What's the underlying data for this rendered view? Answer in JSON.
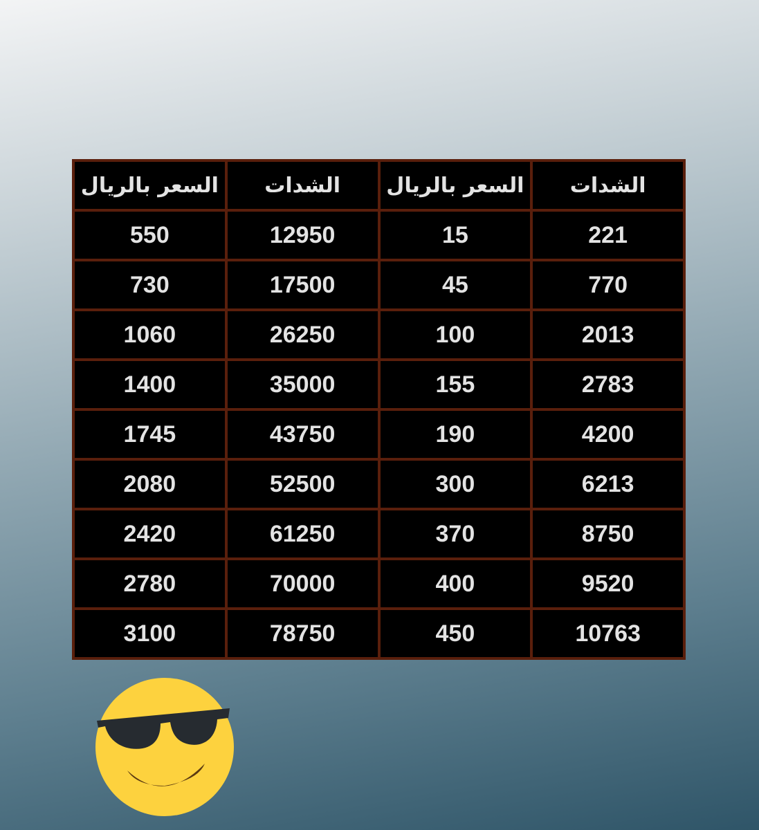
{
  "table": {
    "headers": [
      "الشدات",
      "السعر بالريال",
      "الشدات",
      "السعر بالريال"
    ],
    "rows": [
      [
        "221",
        "15",
        "12950",
        "550"
      ],
      [
        "770",
        "45",
        "17500",
        "730"
      ],
      [
        "2013",
        "100",
        "26250",
        "1060"
      ],
      [
        "2783",
        "155",
        "35000",
        "1400"
      ],
      [
        "4200",
        "190",
        "43750",
        "1745"
      ],
      [
        "6213",
        "300",
        "52500",
        "2080"
      ],
      [
        "8750",
        "370",
        "61250",
        "2420"
      ],
      [
        "9520",
        "400",
        "70000",
        "2780"
      ],
      [
        "10763",
        "450",
        "78750",
        "3100"
      ]
    ]
  },
  "colors": {
    "border": "#5a1f0c",
    "cell": "#000000",
    "text": "#e3e3e3",
    "emoji": "#fdd23e"
  },
  "decoration": {
    "emoji": "smiling-face-with-sunglasses-icon"
  }
}
